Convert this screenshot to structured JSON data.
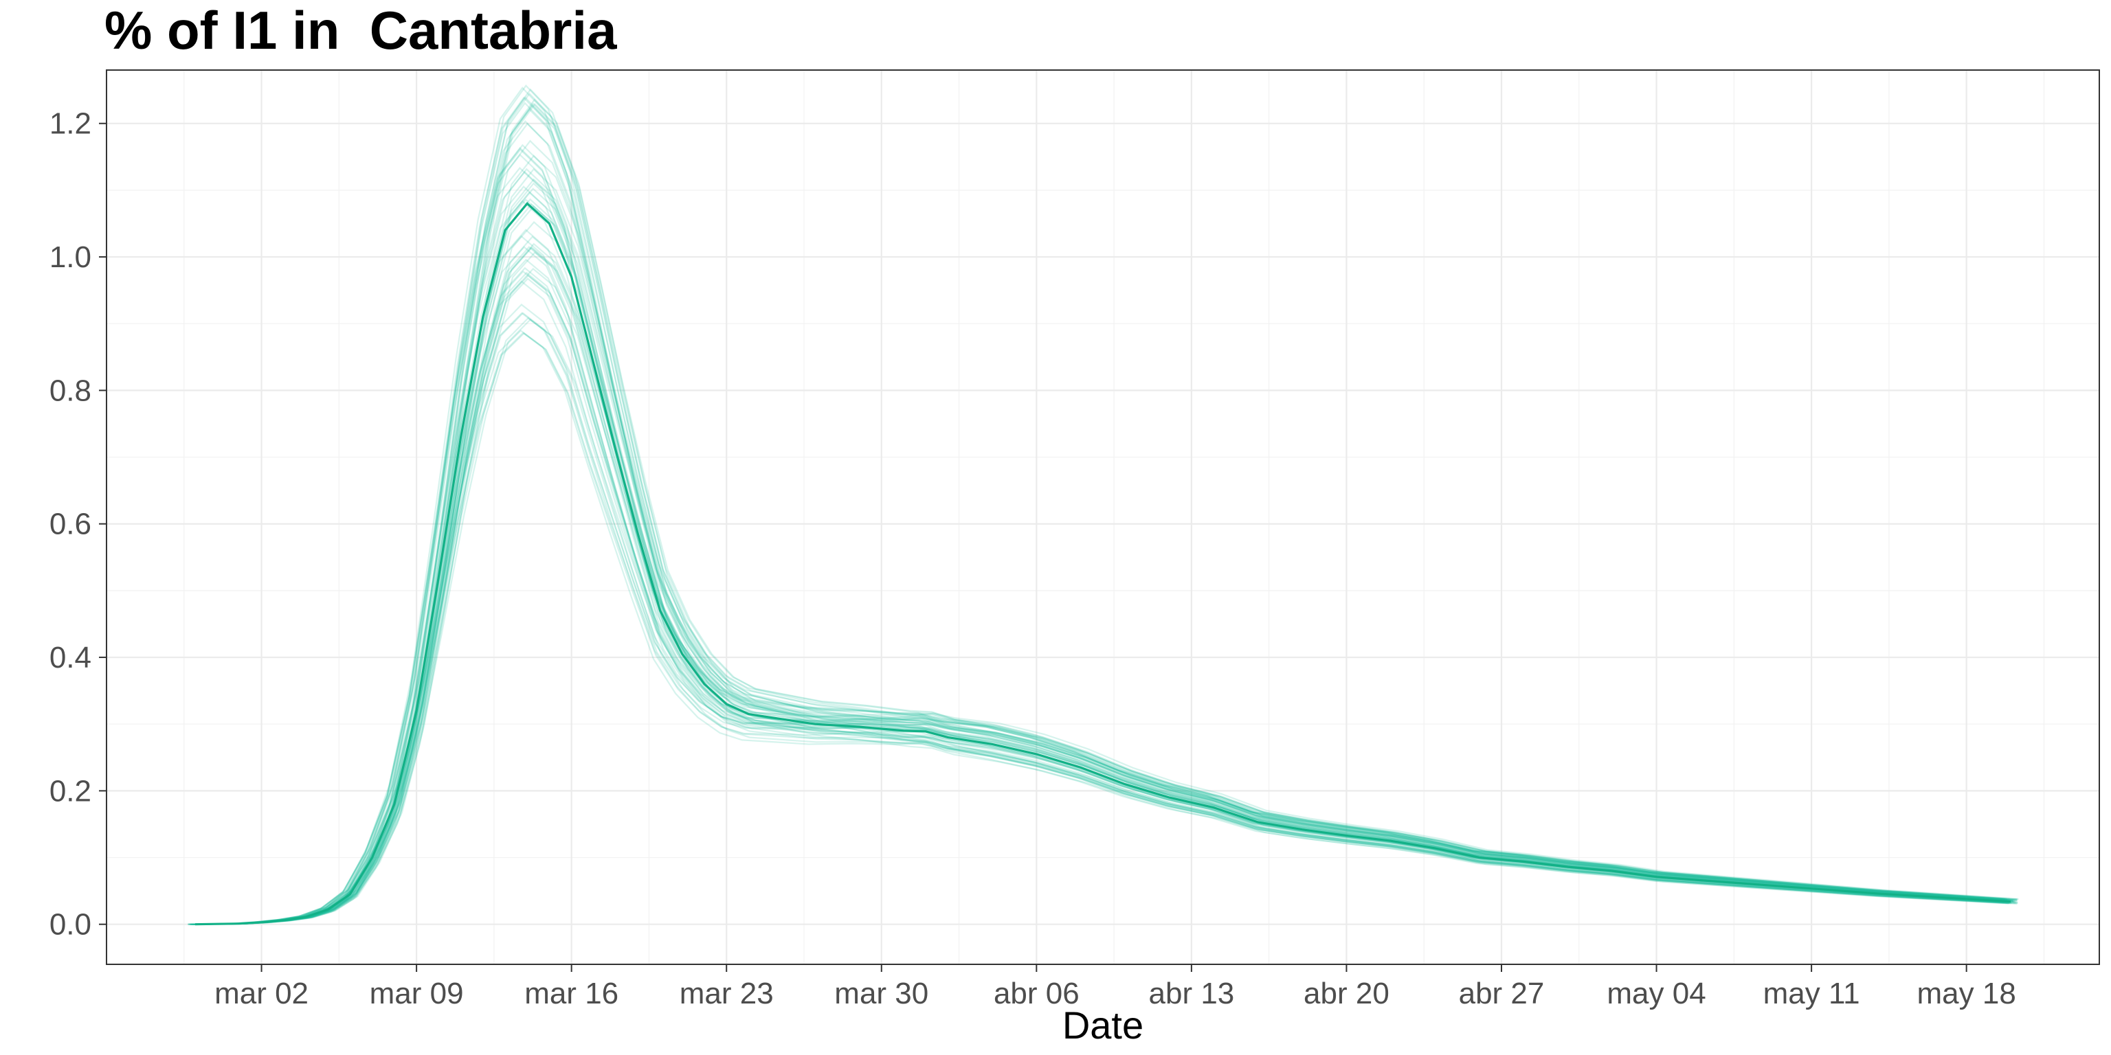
{
  "chart_data": {
    "type": "line",
    "title": "% of I1 in  Cantabria",
    "xlabel": "Date",
    "ylabel": "",
    "x_axis_type": "date",
    "x_range": [
      "2020-02-24",
      "2020-05-24"
    ],
    "ylim": [
      -0.06,
      1.28
    ],
    "x_ticks": [
      {
        "date": "2020-03-02",
        "label": "mar 02"
      },
      {
        "date": "2020-03-09",
        "label": "mar 09"
      },
      {
        "date": "2020-03-16",
        "label": "mar 16"
      },
      {
        "date": "2020-03-23",
        "label": "mar 23"
      },
      {
        "date": "2020-03-30",
        "label": "mar 30"
      },
      {
        "date": "2020-04-06",
        "label": "abr 06"
      },
      {
        "date": "2020-04-13",
        "label": "abr 13"
      },
      {
        "date": "2020-04-20",
        "label": "abr 20"
      },
      {
        "date": "2020-04-27",
        "label": "abr 27"
      },
      {
        "date": "2020-05-04",
        "label": "may 04"
      },
      {
        "date": "2020-05-11",
        "label": "may 11"
      },
      {
        "date": "2020-05-18",
        "label": "may 18"
      }
    ],
    "y_ticks": [
      {
        "value": 0.0,
        "label": "0.0"
      },
      {
        "value": 0.2,
        "label": "0.2"
      },
      {
        "value": 0.4,
        "label": "0.4"
      },
      {
        "value": 0.6,
        "label": "0.6"
      },
      {
        "value": 0.8,
        "label": "0.8"
      },
      {
        "value": 1.0,
        "label": "1.0"
      },
      {
        "value": 1.2,
        "label": "1.2"
      }
    ],
    "grid": true,
    "line_color": "#1abc9c",
    "series": [
      {
        "role": "central estimate",
        "x": [
          "2020-02-28",
          "2020-03-01",
          "2020-03-02",
          "2020-03-03",
          "2020-03-04",
          "2020-03-05",
          "2020-03-06",
          "2020-03-07",
          "2020-03-08",
          "2020-03-09",
          "2020-03-10",
          "2020-03-11",
          "2020-03-12",
          "2020-03-13",
          "2020-03-14",
          "2020-03-15",
          "2020-03-16",
          "2020-03-17",
          "2020-03-18",
          "2020-03-19",
          "2020-03-20",
          "2020-03-21",
          "2020-03-22",
          "2020-03-23",
          "2020-03-24",
          "2020-03-25",
          "2020-03-26",
          "2020-03-27",
          "2020-03-28",
          "2020-03-29",
          "2020-03-30",
          "2020-03-31",
          "2020-04-01",
          "2020-04-02",
          "2020-04-04",
          "2020-04-06",
          "2020-04-08",
          "2020-04-10",
          "2020-04-12",
          "2020-04-14",
          "2020-04-16",
          "2020-04-18",
          "2020-04-20",
          "2020-04-22",
          "2020-04-24",
          "2020-04-26",
          "2020-04-28",
          "2020-04-30",
          "2020-05-02",
          "2020-05-04",
          "2020-05-06",
          "2020-05-08",
          "2020-05-10",
          "2020-05-12",
          "2020-05-14",
          "2020-05-16",
          "2020-05-18",
          "2020-05-20"
        ],
        "y": [
          0.0,
          0.001,
          0.003,
          0.006,
          0.011,
          0.022,
          0.045,
          0.1,
          0.18,
          0.32,
          0.52,
          0.73,
          0.91,
          1.04,
          1.08,
          1.05,
          0.97,
          0.84,
          0.71,
          0.585,
          0.47,
          0.405,
          0.36,
          0.33,
          0.315,
          0.31,
          0.305,
          0.3,
          0.298,
          0.296,
          0.293,
          0.29,
          0.289,
          0.28,
          0.27,
          0.255,
          0.235,
          0.21,
          0.19,
          0.175,
          0.153,
          0.142,
          0.133,
          0.125,
          0.114,
          0.1,
          0.094,
          0.086,
          0.08,
          0.071,
          0.066,
          0.061,
          0.056,
          0.051,
          0.046,
          0.042,
          0.038,
          0.034
        ]
      }
    ],
    "ensemble_runs": 60,
    "ensemble_note": "the central curve is surrounded by 60 semi-transparent simulation runs, spread roughly ±20% around it"
  }
}
